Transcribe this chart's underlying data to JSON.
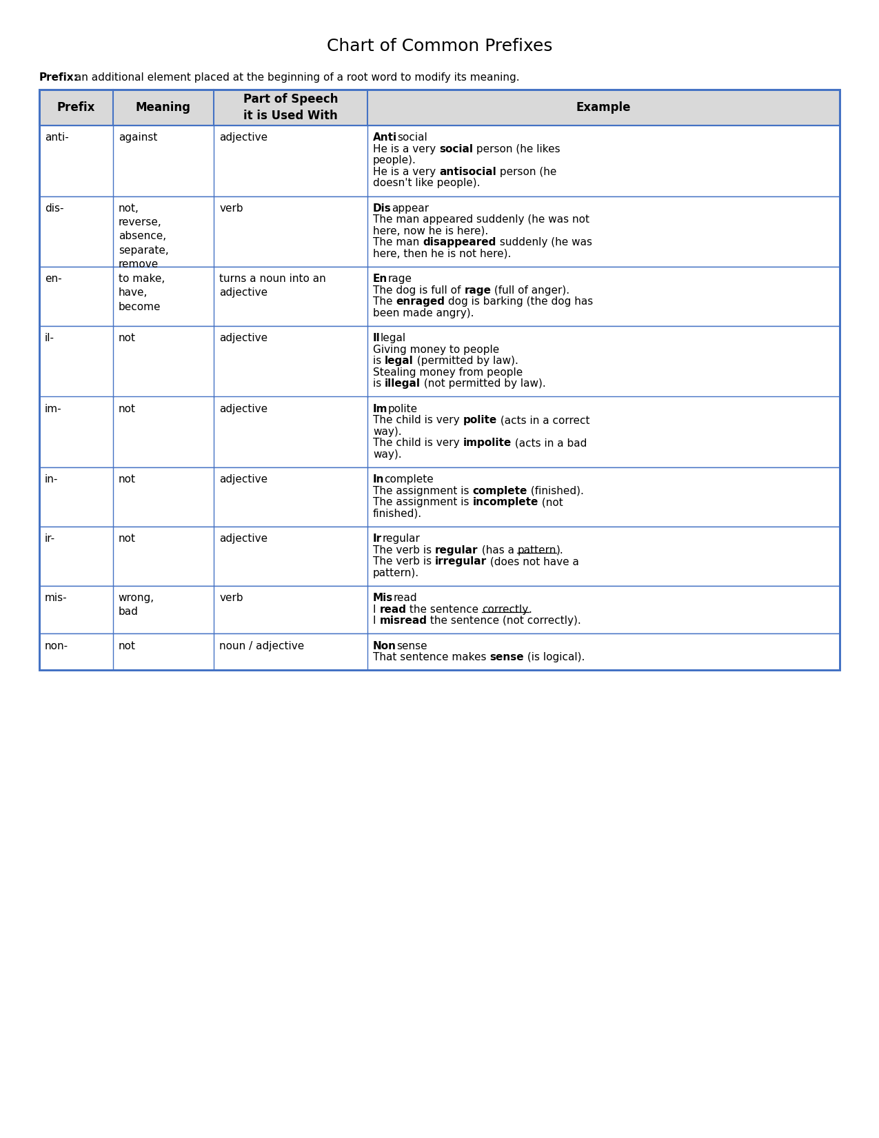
{
  "title": "Chart of Common Prefixes",
  "subtitle_bold": "Prefix:",
  "subtitle_rest": " an additional element placed at the beginning of a root word to modify its meaning.",
  "header_bg": "#d9d9d9",
  "border_color": "#4472c4",
  "header_color": "#000000",
  "col_headers": [
    "Prefix",
    "Meaning",
    "Part of Speech\nit is Used With",
    "Example"
  ],
  "rows": [
    {
      "prefix": "anti-",
      "meaning": "against",
      "pos": "adjective",
      "example": [
        [
          {
            "t": "Anti",
            "b": true
          },
          {
            "t": "social",
            "b": false
          }
        ],
        [
          {
            "t": "He is a very ",
            "b": false
          },
          {
            "t": "social",
            "b": true
          },
          {
            "t": " person (he likes",
            "b": false
          }
        ],
        [
          {
            "t": "people).",
            "b": false
          }
        ],
        [
          {
            "t": "He is a very ",
            "b": false
          },
          {
            "t": "antisocial",
            "b": true
          },
          {
            "t": " person (he",
            "b": false
          }
        ],
        [
          {
            "t": "doesn't like people).",
            "b": false
          }
        ]
      ]
    },
    {
      "prefix": "dis-",
      "meaning": "not,\nreverse,\nabsence,\nseparate,\nremove",
      "pos": "verb",
      "example": [
        [
          {
            "t": "Dis",
            "b": true
          },
          {
            "t": "appear",
            "b": false
          }
        ],
        [
          {
            "t": "The man appeared suddenly (he was not",
            "b": false
          }
        ],
        [
          {
            "t": "here, now he is here).",
            "b": false
          }
        ],
        [
          {
            "t": "The man ",
            "b": false
          },
          {
            "t": "disappeared",
            "b": true
          },
          {
            "t": " suddenly (he was",
            "b": false
          }
        ],
        [
          {
            "t": "here, then he is not here).",
            "b": false
          }
        ]
      ]
    },
    {
      "prefix": "en-",
      "meaning": "to make,\nhave,\nbecome",
      "pos": "turns a noun into an\nadjective",
      "example": [
        [
          {
            "t": "En",
            "b": true
          },
          {
            "t": "rage",
            "b": false
          }
        ],
        [
          {
            "t": "The dog is full of ",
            "b": false
          },
          {
            "t": "rage",
            "b": true
          },
          {
            "t": " (full of anger).",
            "b": false
          }
        ],
        [
          {
            "t": "The ",
            "b": false
          },
          {
            "t": "enraged",
            "b": true
          },
          {
            "t": " dog is barking (the dog has",
            "b": false
          }
        ],
        [
          {
            "t": "been made angry).",
            "b": false
          }
        ]
      ]
    },
    {
      "prefix": "il-",
      "meaning": "not",
      "pos": "adjective",
      "example": [
        [
          {
            "t": "Il",
            "b": true
          },
          {
            "t": "legal",
            "b": false
          }
        ],
        [
          {
            "t": "Giving money to people",
            "b": false
          }
        ],
        [
          {
            "t": "is ",
            "b": false
          },
          {
            "t": "legal",
            "b": true
          },
          {
            "t": " (permitted by law).",
            "b": false
          }
        ],
        [
          {
            "t": "Stealing money from people",
            "b": false
          }
        ],
        [
          {
            "t": "is ",
            "b": false
          },
          {
            "t": "illegal",
            "b": true
          },
          {
            "t": " (not permitted by law).",
            "b": false
          }
        ]
      ]
    },
    {
      "prefix": "im-",
      "meaning": "not",
      "pos": "adjective",
      "example": [
        [
          {
            "t": "Im",
            "b": true
          },
          {
            "t": "polite",
            "b": false
          }
        ],
        [
          {
            "t": "The child is very ",
            "b": false
          },
          {
            "t": "polite",
            "b": true
          },
          {
            "t": " (acts in a correct",
            "b": false
          }
        ],
        [
          {
            "t": "way).",
            "b": false
          }
        ],
        [
          {
            "t": "The child is very ",
            "b": false
          },
          {
            "t": "impolite",
            "b": true
          },
          {
            "t": " (acts in a bad",
            "b": false
          }
        ],
        [
          {
            "t": "way).",
            "b": false
          }
        ]
      ]
    },
    {
      "prefix": "in-",
      "meaning": "not",
      "pos": "adjective",
      "example": [
        [
          {
            "t": "In",
            "b": true
          },
          {
            "t": "complete",
            "b": false
          }
        ],
        [
          {
            "t": "The assignment is ",
            "b": false
          },
          {
            "t": "complete",
            "b": true
          },
          {
            "t": " (finished).",
            "b": false
          }
        ],
        [
          {
            "t": "The assignment is ",
            "b": false
          },
          {
            "t": "incomplete",
            "b": true
          },
          {
            "t": " (not",
            "b": false
          }
        ],
        [
          {
            "t": "finished).",
            "b": false
          }
        ]
      ]
    },
    {
      "prefix": "ir-",
      "meaning": "not",
      "pos": "adjective",
      "example": [
        [
          {
            "t": "Ir",
            "b": true
          },
          {
            "t": "regular",
            "b": false
          }
        ],
        [
          {
            "t": "The verb is ",
            "b": false
          },
          {
            "t": "regular",
            "b": true
          },
          {
            "t": " (has a ",
            "b": false
          },
          {
            "t": "pattern",
            "b": false,
            "u": true
          },
          {
            "t": ").",
            "b": false
          }
        ],
        [
          {
            "t": "The verb is ",
            "b": false
          },
          {
            "t": "irregular",
            "b": true
          },
          {
            "t": " (does not have a",
            "b": false
          }
        ],
        [
          {
            "t": "pattern).",
            "b": false
          }
        ]
      ]
    },
    {
      "prefix": "mis-",
      "meaning": "wrong,\nbad",
      "pos": "verb",
      "example": [
        [
          {
            "t": "Mis",
            "b": true
          },
          {
            "t": "read",
            "b": false
          }
        ],
        [
          {
            "t": "I ",
            "b": false
          },
          {
            "t": "read",
            "b": true
          },
          {
            "t": " the sentence ",
            "b": false
          },
          {
            "t": "correctly",
            "b": false,
            "u": true
          },
          {
            "t": ".",
            "b": false
          }
        ],
        [
          {
            "t": "I ",
            "b": false
          },
          {
            "t": "misread",
            "b": true
          },
          {
            "t": " the sentence (not correctly).",
            "b": false
          }
        ]
      ]
    },
    {
      "prefix": "non-",
      "meaning": "not",
      "pos": "noun / adjective",
      "example": [
        [
          {
            "t": "Non",
            "b": true
          },
          {
            "t": "sense",
            "b": false
          }
        ],
        [
          {
            "t": "That sentence makes ",
            "b": false
          },
          {
            "t": "sense",
            "b": true
          },
          {
            "t": " (is logical).",
            "b": false
          }
        ]
      ]
    }
  ],
  "bg_color": "#ffffff",
  "text_color": "#000000",
  "font_size": 11,
  "header_font_size": 12,
  "title_font_size": 18,
  "border_color_thin": "#4472c4"
}
